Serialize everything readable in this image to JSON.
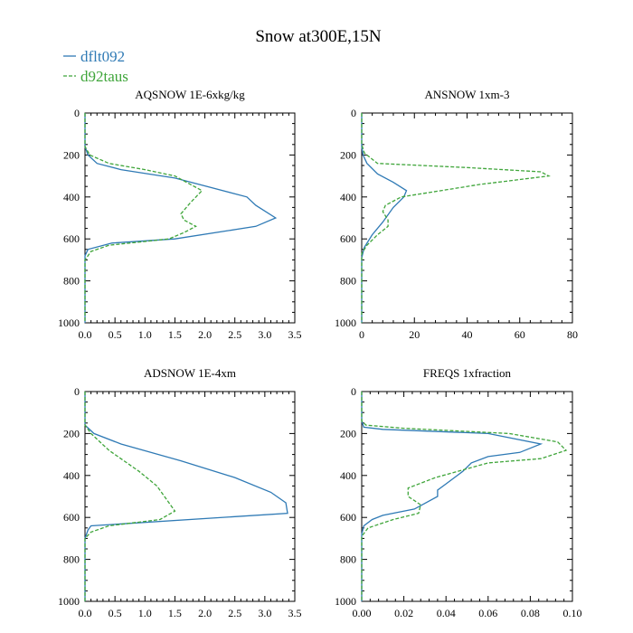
{
  "title": "Snow at300E,15N",
  "colors": {
    "series1": "#2f7ab5",
    "series2": "#3fa53a",
    "axis": "#000000"
  },
  "legend": [
    {
      "name": "dflt092",
      "color": "#2f7ab5",
      "dash": "solid"
    },
    {
      "name": "d92taus",
      "color": "#3fa53a",
      "dash": "dashed"
    }
  ],
  "chart_data": [
    {
      "type": "line",
      "title": "AQSNOW  1E-6xkg/kg",
      "xlim": [
        0,
        3.5
      ],
      "ylim": [
        1000,
        0
      ],
      "xticks": [
        "0.0",
        "0.5",
        "1.0",
        "1.5",
        "2.0",
        "2.5",
        "3.0",
        "3.5"
      ],
      "xtick_values": [
        0,
        0.5,
        1,
        1.5,
        2,
        2.5,
        3,
        3.5
      ],
      "yticks": [
        "0",
        "200",
        "400",
        "600",
        "800",
        "1000"
      ],
      "ytick_values": [
        0,
        200,
        400,
        600,
        800,
        1000
      ],
      "series": [
        {
          "name": "dflt092",
          "x": [
            0,
            0,
            0.05,
            0.2,
            0.6,
            1.5,
            2.7,
            2.85,
            3.18,
            2.85,
            1.5,
            0.45,
            0.05,
            0,
            0
          ],
          "y": [
            0,
            160,
            200,
            240,
            270,
            310,
            400,
            440,
            500,
            540,
            600,
            620,
            650,
            680,
            1000
          ]
        },
        {
          "name": "d92taus",
          "x": [
            0,
            0,
            0.08,
            0.4,
            1.0,
            1.5,
            1.95,
            1.75,
            1.6,
            1.65,
            1.85,
            1.65,
            1.4,
            0.4,
            0.1,
            0,
            0
          ],
          "y": [
            0,
            160,
            200,
            240,
            270,
            300,
            370,
            430,
            480,
            510,
            540,
            570,
            600,
            630,
            660,
            700,
            1000
          ]
        }
      ]
    },
    {
      "type": "line",
      "title": "ANSNOW  1xm-3",
      "xlim": [
        0,
        80
      ],
      "ylim": [
        1000,
        0
      ],
      "xticks": [
        "0",
        "20",
        "40",
        "60",
        "80"
      ],
      "xtick_values": [
        0,
        20,
        40,
        60,
        80
      ],
      "yticks": [
        "0",
        "200",
        "400",
        "600",
        "800",
        "1000"
      ],
      "ytick_values": [
        0,
        200,
        400,
        600,
        800,
        1000
      ],
      "series": [
        {
          "name": "dflt092",
          "x": [
            0,
            0,
            0.5,
            2,
            6,
            12,
            17,
            16,
            12,
            8,
            4,
            1,
            0,
            0
          ],
          "y": [
            0,
            160,
            200,
            240,
            290,
            330,
            370,
            400,
            450,
            520,
            580,
            640,
            690,
            1000
          ]
        },
        {
          "name": "d92taus",
          "x": [
            0,
            0,
            1,
            6,
            40,
            68,
            71,
            45,
            15,
            9,
            8,
            10,
            10,
            6,
            2,
            0,
            0
          ],
          "y": [
            0,
            150,
            190,
            240,
            260,
            280,
            300,
            340,
            400,
            440,
            470,
            510,
            540,
            580,
            630,
            670,
            1000
          ]
        }
      ]
    },
    {
      "type": "line",
      "title": "ADSNOW  1E-4xm",
      "xlim": [
        0,
        3.5
      ],
      "ylim": [
        1000,
        0
      ],
      "xticks": [
        "0.0",
        "0.5",
        "1.0",
        "1.5",
        "2.0",
        "2.5",
        "3.0",
        "3.5"
      ],
      "xtick_values": [
        0,
        0.5,
        1,
        1.5,
        2,
        2.5,
        3,
        3.5
      ],
      "yticks": [
        "0",
        "200",
        "400",
        "600",
        "800",
        "1000"
      ],
      "ytick_values": [
        0,
        200,
        400,
        600,
        800,
        1000
      ],
      "series": [
        {
          "name": "dflt092",
          "x": [
            0,
            0,
            0.15,
            0.6,
            1.6,
            2.5,
            3.1,
            3.35,
            3.38,
            0.1,
            0.05,
            0,
            0
          ],
          "y": [
            0,
            160,
            200,
            250,
            330,
            410,
            480,
            530,
            580,
            640,
            660,
            700,
            1000
          ]
        },
        {
          "name": "d92taus",
          "x": [
            0,
            0,
            0.1,
            0.4,
            0.9,
            1.2,
            1.5,
            1.25,
            0.4,
            0.1,
            0,
            0
          ],
          "y": [
            0,
            160,
            200,
            280,
            380,
            450,
            570,
            610,
            640,
            670,
            700,
            1000
          ]
        }
      ]
    },
    {
      "type": "line",
      "title": "FREQS  1xfraction",
      "xlim": [
        0,
        0.1
      ],
      "ylim": [
        1000,
        0
      ],
      "xticks": [
        "0.00",
        "0.02",
        "0.04",
        "0.06",
        "0.08",
        "0.10"
      ],
      "xtick_values": [
        0,
        0.02,
        0.04,
        0.06,
        0.08,
        0.1
      ],
      "yticks": [
        "0",
        "200",
        "400",
        "600",
        "800",
        "1000"
      ],
      "ytick_values": [
        0,
        200,
        400,
        600,
        800,
        1000
      ],
      "series": [
        {
          "name": "dflt092",
          "x": [
            0,
            0,
            0.001,
            0.01,
            0.06,
            0.085,
            0.075,
            0.06,
            0.052,
            0.048,
            0.04,
            0.036,
            0.036,
            0.025,
            0.01,
            0.005,
            0.001,
            0,
            0
          ],
          "y": [
            0,
            140,
            170,
            180,
            200,
            250,
            290,
            310,
            340,
            380,
            440,
            470,
            500,
            560,
            590,
            610,
            640,
            680,
            1000
          ]
        },
        {
          "name": "d92taus",
          "x": [
            0,
            0,
            0.002,
            0.02,
            0.07,
            0.093,
            0.097,
            0.085,
            0.06,
            0.035,
            0.022,
            0.022,
            0.025,
            0.028,
            0.027,
            0.015,
            0.003,
            0,
            0
          ],
          "y": [
            0,
            140,
            160,
            175,
            200,
            240,
            280,
            320,
            340,
            410,
            460,
            500,
            520,
            540,
            580,
            610,
            650,
            690,
            1000
          ]
        }
      ]
    }
  ]
}
